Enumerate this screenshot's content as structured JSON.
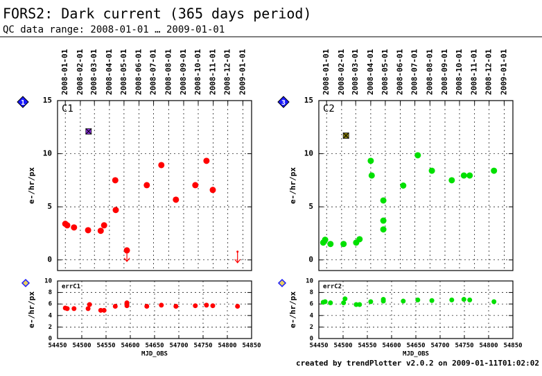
{
  "title": "FORS2: Dark current (365 days period)",
  "subtitle": "QC data range: 2008-01-01 … 2009-01-01",
  "footer": "created by trendPlotter v2.0.2 on 2009-01-11T01:02:02",
  "chart_data": [
    {
      "type": "scatter",
      "badge": "1",
      "panel_label": "C1",
      "ylabel": "e-/hr/px",
      "color": "#ff0000",
      "xlim": [
        54450,
        54850
      ],
      "ylim": [
        -1,
        15
      ],
      "yticks": [
        0,
        5,
        10,
        15
      ],
      "xticks": [
        {
          "value": 54466,
          "label": "2008-01-01"
        },
        {
          "value": 54497,
          "label": "2008-02-01"
        },
        {
          "value": 54526,
          "label": "2008-03-01"
        },
        {
          "value": 54557,
          "label": "2008-04-01"
        },
        {
          "value": 54587,
          "label": "2008-05-01"
        },
        {
          "value": 54618,
          "label": "2008-06-01"
        },
        {
          "value": 54648,
          "label": "2008-07-01"
        },
        {
          "value": 54679,
          "label": "2008-08-01"
        },
        {
          "value": 54710,
          "label": "2008-09-01"
        },
        {
          "value": 54740,
          "label": "2008-10-01"
        },
        {
          "value": 54771,
          "label": "2008-11-01"
        },
        {
          "value": 54801,
          "label": "2008-12-01"
        },
        {
          "value": 54832,
          "label": "2009-01-01"
        }
      ],
      "grid": true,
      "x": [
        54466,
        54470,
        54484,
        54513,
        54539,
        54546,
        54569,
        54570,
        54634,
        54664,
        54694,
        54734,
        54757,
        54770
      ],
      "values": [
        3.4,
        3.26,
        3.06,
        2.8,
        2.74,
        3.26,
        7.5,
        4.7,
        7.04,
        8.93,
        5.67,
        7.04,
        9.33,
        6.59
      ],
      "upper_limits": {
        "x": [
          54593,
          54821
        ],
        "values": [
          0.9,
          0.78
        ]
      },
      "outlier": {
        "x": [
          54514
        ],
        "values": [
          12.1
        ],
        "color": "#8a2be2"
      }
    },
    {
      "type": "scatter",
      "panel_label": "errC1",
      "ylabel": "e-/hr/px",
      "xlabel": "MJD_OBS",
      "color": "#ff0000",
      "xlim": [
        54450,
        54850
      ],
      "ylim": [
        0,
        10
      ],
      "yticks": [
        0,
        2,
        4,
        6,
        8,
        10
      ],
      "xticks": [
        54450,
        54500,
        54550,
        54600,
        54650,
        54700,
        54750,
        54800,
        54850
      ],
      "grid": true,
      "x": [
        54466,
        54470,
        54484,
        54513,
        54516,
        54539,
        54546,
        54569,
        54593,
        54593,
        54634,
        54664,
        54694,
        54734,
        54757,
        54770,
        54821
      ],
      "values": [
        5.3,
        5.2,
        5.2,
        5.2,
        5.9,
        4.9,
        4.9,
        5.6,
        5.7,
        6.2,
        5.6,
        5.8,
        5.6,
        5.7,
        5.8,
        5.7,
        5.6
      ]
    },
    {
      "type": "scatter",
      "badge": "3",
      "panel_label": "C2",
      "ylabel": "e-/hr/px",
      "color": "#00e000",
      "xlim": [
        54450,
        54850
      ],
      "ylim": [
        -1,
        15
      ],
      "yticks": [
        0,
        5,
        10,
        15
      ],
      "xticks": [
        {
          "value": 54466,
          "label": "2008-01-01"
        },
        {
          "value": 54497,
          "label": "2008-02-01"
        },
        {
          "value": 54526,
          "label": "2008-03-01"
        },
        {
          "value": 54557,
          "label": "2008-04-01"
        },
        {
          "value": 54587,
          "label": "2008-05-01"
        },
        {
          "value": 54618,
          "label": "2008-06-01"
        },
        {
          "value": 54648,
          "label": "2008-07-01"
        },
        {
          "value": 54679,
          "label": "2008-08-01"
        },
        {
          "value": 54710,
          "label": "2008-09-01"
        },
        {
          "value": 54740,
          "label": "2008-10-01"
        },
        {
          "value": 54771,
          "label": "2008-11-01"
        },
        {
          "value": 54801,
          "label": "2008-12-01"
        },
        {
          "value": 54832,
          "label": "2009-01-01"
        }
      ],
      "grid": true,
      "x": [
        54459,
        54463,
        54474,
        54501,
        54527,
        54534,
        54557,
        54559,
        54583,
        54583,
        54583,
        54624,
        54654,
        54683,
        54724,
        54749,
        54761,
        54811
      ],
      "values": [
        1.63,
        1.9,
        1.5,
        1.5,
        1.63,
        1.95,
        9.33,
        7.95,
        5.6,
        3.7,
        2.87,
        7.0,
        9.85,
        8.4,
        7.5,
        7.95,
        7.95,
        8.4
      ],
      "outlier": {
        "x": [
          54506
        ],
        "values": [
          11.7
        ],
        "color": "#8b8000"
      }
    },
    {
      "type": "scatter",
      "panel_label": "errC2",
      "ylabel": "e-/hr/px",
      "xlabel": "MJD_OBS",
      "color": "#00e000",
      "xlim": [
        54450,
        54850
      ],
      "ylim": [
        0,
        10
      ],
      "yticks": [
        0,
        2,
        4,
        6,
        8,
        10
      ],
      "xticks": [
        54450,
        54500,
        54550,
        54600,
        54650,
        54700,
        54750,
        54800,
        54850
      ],
      "grid": true,
      "x": [
        54459,
        54463,
        54474,
        54501,
        54504,
        54527,
        54534,
        54557,
        54583,
        54583,
        54624,
        54654,
        54683,
        54724,
        54749,
        54761,
        54811
      ],
      "values": [
        6.3,
        6.4,
        6.2,
        6.2,
        6.9,
        5.9,
        5.9,
        6.4,
        6.5,
        6.8,
        6.5,
        6.7,
        6.6,
        6.7,
        6.8,
        6.7,
        6.4
      ]
    }
  ]
}
